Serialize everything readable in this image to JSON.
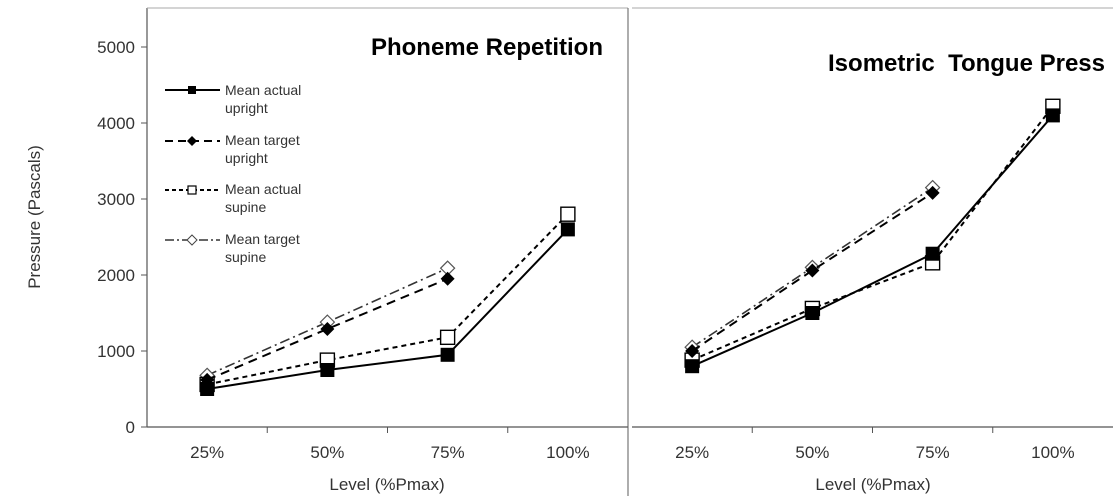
{
  "chart_data": [
    {
      "type": "line",
      "title": "Phoneme Repetition",
      "xlabel": "Level (%Pmax)",
      "ylabel": "Pressure (Pascals)",
      "categories": [
        "25%",
        "50%",
        "75%",
        "100%"
      ],
      "ylim": [
        0,
        5000
      ],
      "yticks": [
        "0",
        "1000",
        "2000",
        "3000",
        "4000",
        "5000"
      ],
      "grid": false,
      "legend_placement": "upper-left",
      "series": [
        {
          "name": "Mean actual upright",
          "values": [
            500,
            750,
            950,
            2600
          ],
          "line": "solid",
          "marker": "square-filled"
        },
        {
          "name": "Mean target upright",
          "values": [
            620,
            1290,
            1950,
            null
          ],
          "line": "dashed",
          "marker": "diamond-filled"
        },
        {
          "name": "Mean actual supine",
          "values": [
            560,
            880,
            1180,
            2800
          ],
          "line": "short-dashed",
          "marker": "square-open"
        },
        {
          "name": "Mean target supine",
          "values": [
            680,
            1380,
            2090,
            null
          ],
          "line": "dash-dot",
          "marker": "diamond-open"
        }
      ]
    },
    {
      "type": "line",
      "title": "Isometric  Tongue Press",
      "xlabel": "Level (%Pmax)",
      "ylabel": "",
      "categories": [
        "25%",
        "50%",
        "75%",
        "100%"
      ],
      "ylim": [
        0,
        5000
      ],
      "grid": false,
      "series": [
        {
          "name": "Mean actual upright",
          "values": [
            800,
            1500,
            2280,
            4100
          ],
          "line": "solid",
          "marker": "square-filled"
        },
        {
          "name": "Mean target upright",
          "values": [
            1000,
            2060,
            3080,
            null
          ],
          "line": "dashed",
          "marker": "diamond-filled"
        },
        {
          "name": "Mean actual supine",
          "values": [
            880,
            1560,
            2160,
            4220
          ],
          "line": "short-dashed",
          "marker": "square-open"
        },
        {
          "name": "Mean target supine",
          "values": [
            1050,
            2100,
            3150,
            null
          ],
          "line": "dash-dot",
          "marker": "diamond-open"
        }
      ]
    }
  ],
  "legend": {
    "items": [
      {
        "line1": "Mean actual",
        "line2": "upright"
      },
      {
        "line1": "Mean target",
        "line2": "upright"
      },
      {
        "line1": "Mean actual",
        "line2": "supine"
      },
      {
        "line1": "Mean target",
        "line2": "supine"
      }
    ]
  }
}
